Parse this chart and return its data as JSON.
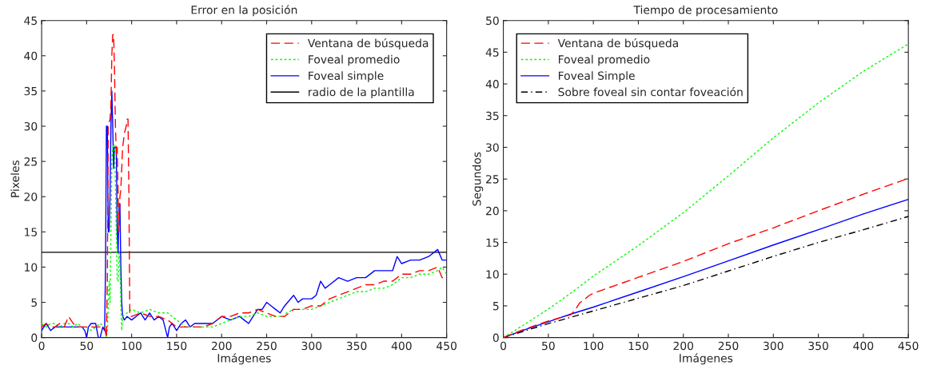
{
  "chart_data": [
    {
      "type": "line",
      "title": "Error en la posición",
      "xlabel": "Imágenes",
      "ylabel": "Pixeles",
      "xlim": [
        0,
        450
      ],
      "xticks": [
        0,
        50,
        100,
        150,
        200,
        250,
        300,
        350,
        400,
        450
      ],
      "ylim": [
        0,
        45
      ],
      "yticks": [
        0,
        5,
        10,
        15,
        20,
        25,
        30,
        35,
        40,
        45
      ],
      "grid": false,
      "legend": "top right",
      "series": [
        {
          "name": "Ventana de búsqueda",
          "color": "#ff0000",
          "line_style": "dashed",
          "x": [
            0,
            5,
            10,
            15,
            20,
            25,
            30,
            35,
            40,
            45,
            50,
            55,
            60,
            65,
            70,
            72,
            73,
            74,
            76,
            77,
            78,
            79,
            80,
            81,
            82,
            83,
            84,
            85,
            86,
            87,
            88,
            90,
            92,
            94,
            95,
            96,
            97,
            98,
            100,
            110,
            120,
            130,
            140,
            150,
            160,
            170,
            180,
            190,
            200,
            210,
            220,
            230,
            240,
            250,
            260,
            270,
            280,
            290,
            300,
            310,
            320,
            330,
            340,
            350,
            360,
            370,
            380,
            390,
            400,
            410,
            420,
            430,
            440,
            445,
            450
          ],
          "values": [
            1.5,
            2,
            1.5,
            1.5,
            2,
            1.5,
            3,
            2,
            1.5,
            1.5,
            1.5,
            1.5,
            1.5,
            1.5,
            1.5,
            0,
            8,
            30,
            31,
            33,
            40,
            43,
            43,
            38,
            30,
            26,
            27,
            20,
            15,
            20,
            21,
            27,
            29,
            30,
            31,
            31,
            20,
            3,
            3,
            3.5,
            3,
            3,
            2.5,
            1.5,
            1.5,
            1.5,
            1.5,
            2,
            3,
            3,
            3.5,
            3.5,
            4,
            3.5,
            3,
            3,
            4,
            4,
            4.5,
            4.5,
            5.5,
            6,
            6.5,
            7,
            7.5,
            7.5,
            8,
            8,
            9,
            9,
            9.5,
            9.5,
            10,
            8.5,
            8.5
          ]
        },
        {
          "name": "Foveal promedio",
          "color": "#00ff00",
          "line_style": "dotted",
          "x": [
            0,
            5,
            10,
            15,
            20,
            25,
            30,
            35,
            40,
            45,
            50,
            55,
            60,
            65,
            70,
            72,
            73,
            75,
            76,
            77,
            78,
            79,
            80,
            81,
            82,
            83,
            84,
            85,
            86,
            87,
            88,
            89,
            90,
            95,
            100,
            110,
            120,
            130,
            140,
            150,
            160,
            170,
            180,
            190,
            200,
            210,
            220,
            230,
            240,
            250,
            260,
            270,
            272,
            280,
            290,
            300,
            310,
            320,
            330,
            340,
            350,
            360,
            370,
            380,
            390,
            400,
            410,
            420,
            430,
            440,
            445,
            450
          ],
          "values": [
            2,
            1.5,
            2,
            2,
            1.5,
            2,
            2,
            1.5,
            2,
            1.5,
            1.5,
            1,
            1.5,
            2,
            1.5,
            0,
            1,
            8,
            5,
            15,
            25,
            27,
            27.5,
            27,
            22,
            15,
            8,
            8,
            12,
            10,
            5,
            1,
            3,
            3.5,
            4,
            3.5,
            4,
            3.5,
            3.5,
            2.5,
            1.5,
            1.5,
            1.5,
            1.5,
            2,
            2.5,
            3,
            3,
            3.5,
            3,
            3,
            3,
            3.5,
            4,
            4,
            4,
            4.5,
            5,
            5.5,
            6,
            6.5,
            6.5,
            7,
            7,
            7.5,
            8.5,
            8.5,
            9,
            9,
            9.5,
            10,
            9
          ]
        },
        {
          "name": "Foveal simple",
          "color": "#0000ff",
          "line_style": "solid",
          "x": [
            0,
            5,
            10,
            15,
            20,
            25,
            30,
            35,
            40,
            45,
            48,
            50,
            52,
            55,
            60,
            63,
            65,
            68,
            70,
            71,
            72,
            73,
            74,
            75,
            76,
            77,
            78,
            79,
            80,
            81,
            82,
            83,
            84,
            85,
            86,
            87,
            88,
            89,
            90,
            92,
            95,
            100,
            105,
            110,
            115,
            120,
            125,
            130,
            135,
            140,
            142,
            145,
            150,
            155,
            160,
            165,
            170,
            180,
            190,
            200,
            210,
            220,
            225,
            230,
            240,
            245,
            250,
            255,
            260,
            265,
            270,
            280,
            285,
            290,
            300,
            305,
            310,
            315,
            320,
            330,
            340,
            350,
            360,
            370,
            380,
            390,
            395,
            400,
            410,
            420,
            430,
            440,
            445,
            448,
            450
          ],
          "values": [
            1,
            2,
            1,
            1.5,
            1.5,
            1.5,
            1.5,
            1.5,
            1.5,
            1.5,
            1,
            0,
            1.5,
            2,
            2,
            0,
            0,
            1.5,
            1,
            10,
            30,
            30,
            15,
            15,
            20,
            30,
            35,
            30,
            24,
            27,
            27,
            27,
            15,
            12,
            19,
            19,
            10,
            5,
            3,
            2.5,
            3,
            2.5,
            3,
            3.5,
            2.5,
            3.5,
            2.5,
            3,
            2.5,
            0,
            1.5,
            2,
            1,
            2,
            2.5,
            1.5,
            2,
            2,
            2,
            3,
            2.5,
            3,
            2.5,
            2,
            4,
            4,
            5,
            4.5,
            4,
            3.5,
            4.5,
            6,
            5,
            5.5,
            5.5,
            6,
            8,
            7,
            7.5,
            8.5,
            8,
            8.5,
            8.5,
            9.5,
            9.5,
            9.5,
            11.5,
            10.5,
            11,
            11,
            11.5,
            12.5,
            11,
            11,
            11
          ]
        },
        {
          "name": "radio de la plantilla",
          "color": "#000000",
          "line_style": "solid",
          "x": [
            0,
            450
          ],
          "values": [
            12.1,
            12.1
          ]
        }
      ]
    },
    {
      "type": "line",
      "title": "Tiempo de procesamiento",
      "xlabel": "Imágenes",
      "ylabel": "Segundos",
      "xlim": [
        0,
        450
      ],
      "xticks": [
        0,
        50,
        100,
        150,
        200,
        250,
        300,
        350,
        400,
        450
      ],
      "ylim": [
        0,
        50
      ],
      "yticks": [
        0,
        5,
        10,
        15,
        20,
        25,
        30,
        35,
        40,
        45,
        50
      ],
      "grid": false,
      "legend": "top left",
      "series": [
        {
          "name": "Ventana de búsqueda",
          "color": "#ff0000",
          "line_style": "dashed",
          "x": [
            0,
            25,
            50,
            70,
            75,
            80,
            85,
            90,
            95,
            100,
            150,
            200,
            250,
            300,
            350,
            400,
            450
          ],
          "values": [
            0,
            1.4,
            2.6,
            3.4,
            3.6,
            4.4,
            5.5,
            6.0,
            6.6,
            7,
            9.5,
            12,
            14.8,
            17.3,
            20,
            22.6,
            25.1
          ]
        },
        {
          "name": "Foveal promedio",
          "color": "#00ff00",
          "line_style": "dotted",
          "x": [
            0,
            25,
            50,
            75,
            100,
            150,
            200,
            250,
            300,
            350,
            400,
            450
          ],
          "values": [
            0,
            2.2,
            4.5,
            7,
            9.7,
            14.5,
            19.7,
            25.5,
            31.5,
            37,
            42,
            46.3
          ]
        },
        {
          "name": "Foveal Simple",
          "color": "#0000ff",
          "line_style": "solid",
          "x": [
            0,
            25,
            50,
            75,
            100,
            150,
            200,
            250,
            300,
            350,
            400,
            450
          ],
          "values": [
            0,
            1.3,
            2.5,
            3.7,
            4.8,
            7.2,
            9.6,
            12.1,
            14.6,
            17,
            19.5,
            21.8
          ]
        },
        {
          "name": "Sobre foveal sin contar foveación",
          "color": "#000000",
          "line_style": "dashdot",
          "x": [
            0,
            25,
            50,
            75,
            100,
            150,
            200,
            250,
            300,
            350,
            400,
            450
          ],
          "values": [
            0,
            1.1,
            2.2,
            3.2,
            4.2,
            6.2,
            8.2,
            10.5,
            12.8,
            15,
            17,
            19.1
          ]
        }
      ]
    }
  ]
}
